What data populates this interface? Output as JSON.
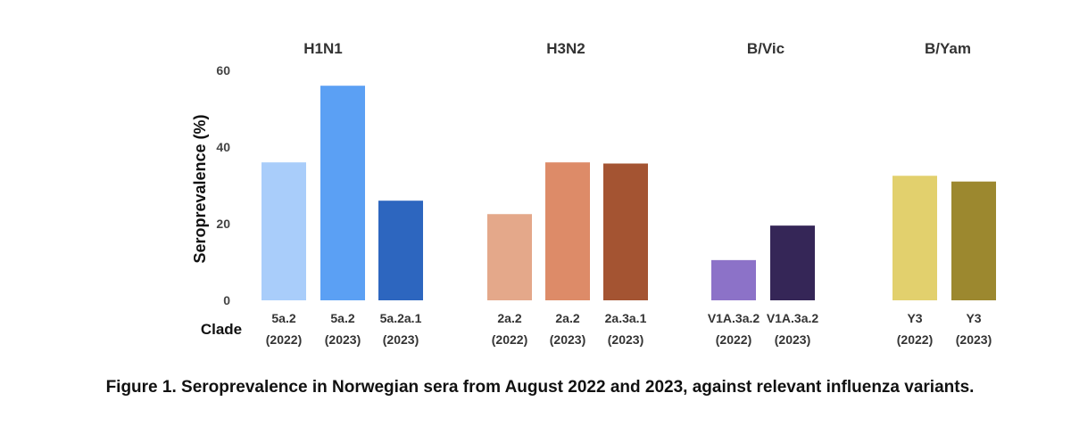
{
  "chart_data": {
    "type": "bar",
    "ylabel": "Seroprevalence (%)",
    "xlabel": "Clade",
    "ylim": [
      0,
      60
    ],
    "yticks": [
      "0",
      "20",
      "40",
      "60"
    ],
    "grid": false,
    "groups": [
      {
        "name": "H1N1",
        "bars": [
          {
            "clade": "5a.2",
            "year": "(2022)",
            "value": 36,
            "color": "#a9cdfa"
          },
          {
            "clade": "5a.2",
            "year": "(2023)",
            "value": 56,
            "color": "#5ba0f4"
          },
          {
            "clade": "5a.2a.1",
            "year": "(2023)",
            "value": 26,
            "color": "#2d66bf"
          }
        ]
      },
      {
        "name": "H3N2",
        "bars": [
          {
            "clade": "2a.2",
            "year": "(2022)",
            "value": 22.5,
            "color": "#e4a88a"
          },
          {
            "clade": "2a.2",
            "year": "(2023)",
            "value": 36,
            "color": "#dd8b68"
          },
          {
            "clade": "2a.3a.1",
            "year": "(2023)",
            "value": 35.7,
            "color": "#a45432"
          }
        ]
      },
      {
        "name": "B/Vic",
        "bars": [
          {
            "clade": "V1A.3a.2",
            "year": "(2022)",
            "value": 10.5,
            "color": "#8c72c8"
          },
          {
            "clade": "V1A.3a.2",
            "year": "(2023)",
            "value": 19.5,
            "color": "#352657"
          }
        ]
      },
      {
        "name": "B/Yam",
        "bars": [
          {
            "clade": "Y3",
            "year": "(2022)",
            "value": 32.5,
            "color": "#e2d06d"
          },
          {
            "clade": "Y3",
            "year": "(2023)",
            "value": 31,
            "color": "#9c882f"
          }
        ]
      }
    ]
  },
  "caption": "Figure 1. Seroprevalence in Norwegian sera from August 2022 and 2023, against relevant influenza variants."
}
